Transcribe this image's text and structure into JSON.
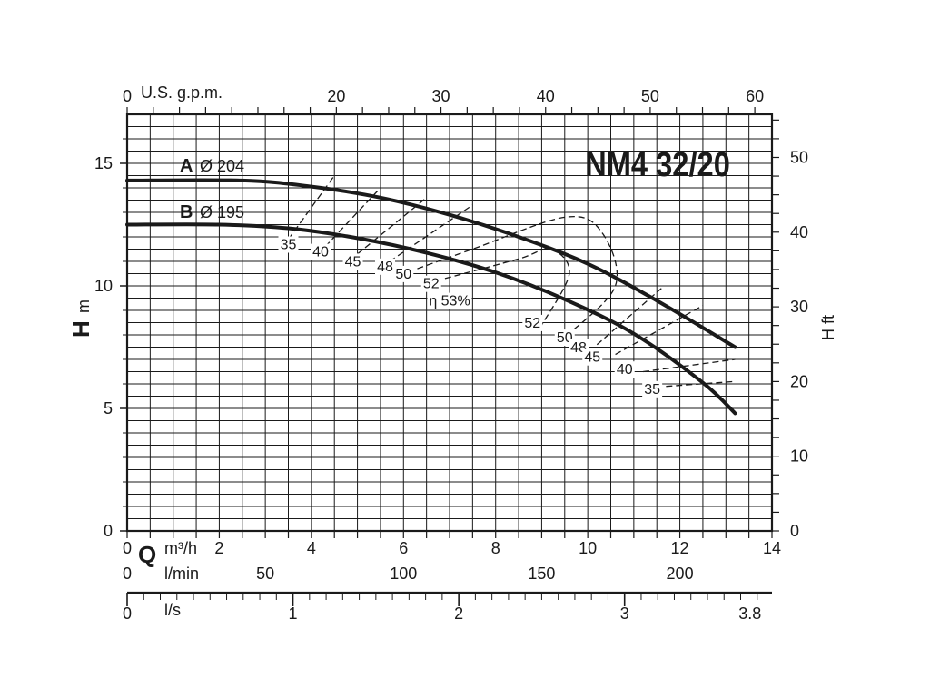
{
  "chart_data": {
    "type": "line",
    "title": "NM4 32/20",
    "x_axes": {
      "q_m3h": {
        "unit": "m³/h",
        "range": [
          0,
          14
        ],
        "ticks": [
          "0",
          "2",
          "4",
          "6",
          "8",
          "10",
          "12",
          "14"
        ],
        "tick_values": [
          0,
          2,
          4,
          6,
          8,
          10,
          12,
          14
        ]
      },
      "q_lmin": {
        "unit": "l/min",
        "range": [
          0,
          233.33
        ],
        "ticks": [
          "0",
          "50",
          "100",
          "150",
          "200"
        ],
        "tick_values": [
          0,
          50,
          100,
          150,
          200
        ]
      },
      "q_ls": {
        "unit": "l/s",
        "range": [
          0,
          3.889
        ],
        "ticks": [
          "0",
          "1",
          "2",
          "3",
          "3.8"
        ],
        "tick_values": [
          0,
          1,
          2,
          3,
          3.8
        ]
      },
      "q_gpm": {
        "unit": "U.S. g.p.m.",
        "range": [
          0,
          61.64
        ],
        "ticks": [
          "0",
          "20",
          "30",
          "40",
          "50",
          "60"
        ],
        "tick_values": [
          0,
          20,
          30,
          40,
          50,
          60
        ]
      }
    },
    "y_axes": {
      "h_m": {
        "label_bold": "H",
        "unit": "m",
        "range": [
          0,
          17
        ],
        "ticks": [
          "0",
          "5",
          "10",
          "15"
        ],
        "tick_values": [
          0,
          5,
          10,
          15
        ]
      },
      "h_ft": {
        "label": "H ft",
        "range": [
          0,
          55.77
        ],
        "ticks": [
          "0",
          "10",
          "20",
          "30",
          "40",
          "50"
        ],
        "tick_values": [
          0,
          10,
          20,
          30,
          40,
          50
        ]
      }
    },
    "x_label_bold": "Q",
    "grid": true,
    "series": [
      {
        "letter": "A",
        "diameter": "Ø 204",
        "x": [
          0,
          2.5,
          4,
          5.5,
          7,
          8.5,
          10,
          11.5,
          13.2
        ],
        "y": [
          14.3,
          14.3,
          14.05,
          13.6,
          12.9,
          12.0,
          10.9,
          9.4,
          7.5
        ]
      },
      {
        "letter": "B",
        "diameter": "Ø 195",
        "x": [
          0,
          2,
          3.5,
          5,
          6.5,
          8,
          9.5,
          11,
          12.5,
          13.2
        ],
        "y": [
          12.5,
          12.5,
          12.35,
          11.95,
          11.35,
          10.55,
          9.45,
          8.05,
          6.05,
          4.8
        ]
      }
    ],
    "efficiency_labels": [
      {
        "text": "35",
        "x": 3.5,
        "y": 11.5
      },
      {
        "text": "40",
        "x": 4.2,
        "y": 11.2
      },
      {
        "text": "45",
        "x": 4.9,
        "y": 10.8
      },
      {
        "text": "48",
        "x": 5.6,
        "y": 10.6
      },
      {
        "text": "50",
        "x": 6.0,
        "y": 10.3
      },
      {
        "text": "52",
        "x": 6.6,
        "y": 9.9
      },
      {
        "text": "η 53%",
        "x": 7.0,
        "y": 9.2
      },
      {
        "text": "52",
        "x": 8.8,
        "y": 8.3
      },
      {
        "text": "50",
        "x": 9.5,
        "y": 7.7
      },
      {
        "text": "48",
        "x": 9.8,
        "y": 7.3
      },
      {
        "text": "45",
        "x": 10.1,
        "y": 6.9
      },
      {
        "text": "40",
        "x": 10.8,
        "y": 6.4
      },
      {
        "text": "35",
        "x": 11.4,
        "y": 5.6
      }
    ],
    "efficiency_curves": [
      {
        "name": "35",
        "left": [
          [
            3.5,
            11.9
          ],
          [
            4.5,
            14.5
          ]
        ],
        "right": [
          [
            11.7,
            5.9
          ],
          [
            13.2,
            6.1
          ]
        ]
      },
      {
        "name": "40",
        "left": [
          [
            4.3,
            11.6
          ],
          [
            5.5,
            14.0
          ]
        ],
        "right": [
          [
            11.2,
            6.5
          ],
          [
            13.2,
            7.0
          ]
        ]
      },
      {
        "name": "45",
        "left": [
          [
            5.0,
            11.3
          ],
          [
            6.5,
            13.6
          ]
        ],
        "right": [
          [
            10.6,
            7.2
          ],
          [
            12.5,
            9.2
          ]
        ]
      },
      {
        "name": "48",
        "left": [
          [
            5.7,
            11.0
          ],
          [
            7.5,
            13.3
          ]
        ],
        "right": [
          [
            10.2,
            7.6
          ],
          [
            11.6,
            9.9
          ]
        ]
      },
      {
        "name": "50",
        "left": [
          [
            6.3,
            10.7
          ],
          [
            7.5,
            11.5
          ],
          [
            9.5,
            12.8
          ],
          [
            10.3,
            12.2
          ],
          [
            10.6,
            10.0
          ],
          [
            9.5,
            7.9
          ]
        ]
      },
      {
        "name": "52",
        "left": [
          [
            6.9,
            10.3
          ],
          [
            8.5,
            11.1
          ],
          [
            9.2,
            11.5
          ],
          [
            9.6,
            10.5
          ],
          [
            9.0,
            8.4
          ]
        ]
      }
    ]
  }
}
